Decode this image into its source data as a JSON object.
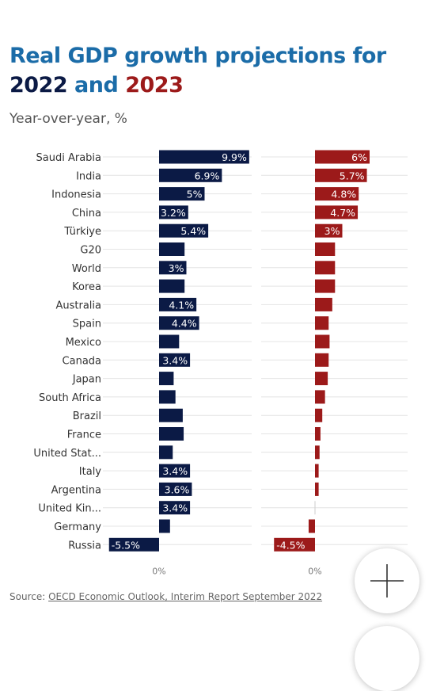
{
  "title": {
    "part1": "Real GDP growth projections for ",
    "year1": "2022",
    "part2": " and ",
    "year2": "2023"
  },
  "subtitle": "Year-over-year, %",
  "source": {
    "prefix": "Source: ",
    "link": "OECD Economic Outlook, Interim Report September 2022"
  },
  "colors": {
    "y2022": "#0b1a45",
    "y2023": "#9c1a1a",
    "title_blue": "#1b6ca8"
  },
  "fab_icon": "plus-icon",
  "chart_data": {
    "type": "bar",
    "orientation": "horizontal",
    "categories": [
      "Saudi Arabia",
      "India",
      "Indonesia",
      "China",
      "Türkiye",
      "G20",
      "World",
      "Korea",
      "Australia",
      "Spain",
      "Mexico",
      "Canada",
      "Japan",
      "South Africa",
      "Brazil",
      "France",
      "United Stat...",
      "Italy",
      "Argentina",
      "United Kin...",
      "Germany",
      "Russia"
    ],
    "series": [
      {
        "name": "2022",
        "values": [
          9.9,
          6.9,
          5,
          3.2,
          5.4,
          2.8,
          3,
          2.8,
          4.1,
          4.4,
          2.2,
          3.4,
          1.6,
          1.8,
          2.6,
          2.7,
          1.5,
          3.4,
          3.6,
          3.4,
          1.2,
          -5.5
        ],
        "labels": [
          "9.9%",
          "6.9%",
          "5%",
          "3.2%",
          "5.4%",
          "",
          "3%",
          "",
          "4.1%",
          "4.4%",
          "",
          "3.4%",
          "",
          "",
          "",
          "",
          "",
          "3.4%",
          "3.6%",
          "3.4%",
          "",
          "-5.5%"
        ]
      },
      {
        "name": "2023",
        "values": [
          6,
          5.7,
          4.8,
          4.7,
          3,
          2.2,
          2.2,
          2.2,
          1.9,
          1.5,
          1.6,
          1.5,
          1.4,
          1.1,
          0.8,
          0.6,
          0.5,
          0.4,
          0.4,
          0,
          -0.7,
          -4.5
        ],
        "labels": [
          "6%",
          "5.7%",
          "4.8%",
          "4.7%",
          "3%",
          "",
          "",
          "",
          "",
          "",
          "",
          "",
          "",
          "",
          "",
          "",
          "",
          "",
          "",
          "",
          "",
          "-4.5%"
        ]
      }
    ],
    "zero_label": "0%",
    "grid": true
  }
}
